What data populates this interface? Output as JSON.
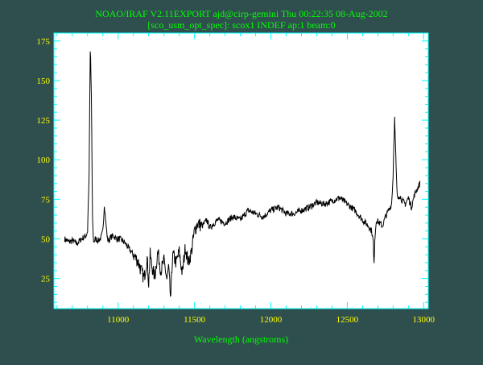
{
  "header": {
    "line1": "NOAO/IRAF V2.11EXPORT ajd@cirp-gemini Thu 00:22:35 08-Aug-2002",
    "line2": "[sco_usm_opt_spec]: scox1 INDEF ap:1 beam:0"
  },
  "colors": {
    "background": "#2f4f4f",
    "plot_background": "#ffffff",
    "frame": "#00ffff",
    "tick_labels": "#ffff00",
    "title_text": "#00ff00",
    "spectrum": "#000000"
  },
  "chart_data": {
    "type": "line",
    "title": "NOAO/IRAF V2.11EXPORT ajd@cirp-gemini Thu 00:22:35 08-Aug-2002",
    "subtitle": "[sco_usm_opt_spec]: scox1 INDEF ap:1 beam:0",
    "xlabel": "Wavelength (angstroms)",
    "ylabel": "",
    "xlim": [
      10580,
      13030
    ],
    "ylim": [
      6,
      180
    ],
    "xticks": [
      11000,
      11500,
      12000,
      12500,
      13000
    ],
    "yticks": [
      25,
      50,
      75,
      100,
      125,
      150,
      175
    ],
    "grid": false,
    "series": [
      {
        "values_x": [
          10650,
          10680,
          10700,
          10730,
          10760,
          10790,
          10800,
          10810,
          10818,
          10825,
          10833,
          10840,
          10850,
          10870,
          10890,
          10900,
          10910,
          10920,
          10930,
          10940,
          10950,
          10970,
          10990,
          11010,
          11040,
          11070,
          11100,
          11130,
          11150,
          11170,
          11190,
          11200,
          11210,
          11220,
          11240,
          11260,
          11280,
          11300,
          11320,
          11330,
          11340,
          11345,
          11350,
          11360,
          11380,
          11400,
          11420,
          11440,
          11460,
          11480,
          11500,
          11520,
          11550,
          11580,
          11600,
          11650,
          11700,
          11750,
          11800,
          11850,
          11900,
          11950,
          12000,
          12050,
          12100,
          12150,
          12200,
          12250,
          12300,
          12350,
          12400,
          12450,
          12500,
          12550,
          12600,
          12640,
          12660,
          12670,
          12675,
          12680,
          12690,
          12710,
          12730,
          12750,
          12770,
          12790,
          12800,
          12805,
          12810,
          12818,
          12825,
          12830,
          12840,
          12860,
          12880,
          12900,
          12920,
          12940,
          12960,
          12975
        ],
        "values_y": [
          50,
          48,
          49,
          47,
          50,
          52,
          55,
          90,
          173,
          140,
          60,
          48,
          50,
          49,
          51,
          55,
          72,
          60,
          50,
          49,
          51,
          52,
          50,
          50,
          48,
          44,
          40,
          36,
          30,
          25,
          38,
          22,
          40,
          33,
          26,
          42,
          30,
          36,
          24,
          32,
          18,
          10,
          30,
          40,
          35,
          42,
          28,
          45,
          35,
          42,
          55,
          60,
          58,
          62,
          57,
          62,
          60,
          64,
          62,
          68,
          66,
          64,
          68,
          70,
          66,
          66,
          68,
          70,
          73,
          72,
          74,
          76,
          72,
          68,
          62,
          58,
          55,
          48,
          33,
          50,
          62,
          60,
          58,
          64,
          68,
          72,
          90,
          112,
          126,
          100,
          80,
          75,
          78,
          74,
          72,
          76,
          70,
          78,
          82,
          85
        ]
      }
    ]
  }
}
